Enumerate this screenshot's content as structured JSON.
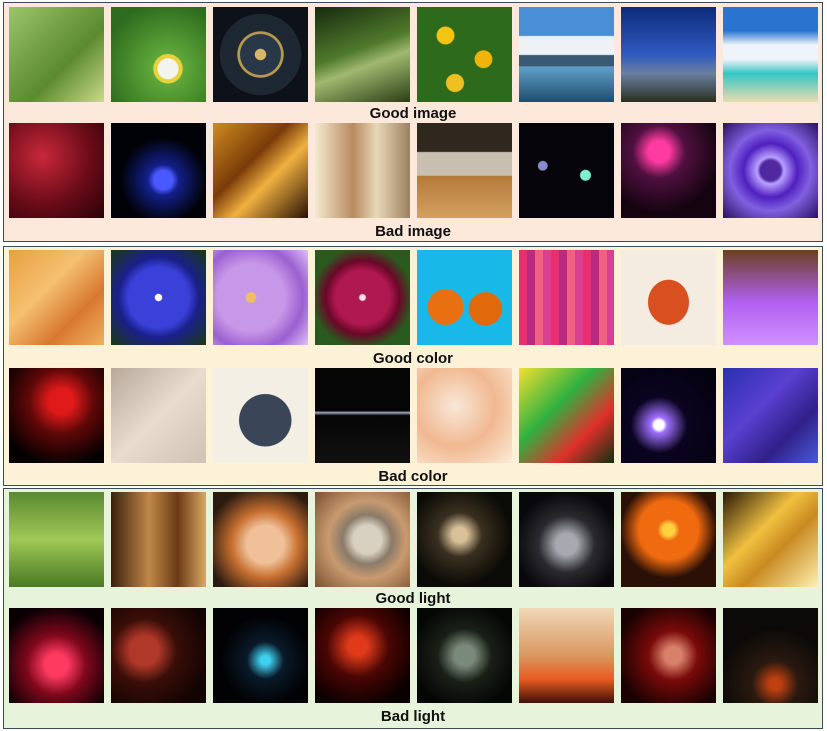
{
  "panels": {
    "image": {
      "good_label": "Good image",
      "bad_label": "Bad image",
      "good_thumbs": [
        {
          "icon": "dragonfly-photo",
          "bg": "linear-gradient(135deg,#9bc56a,#5c8a2e 60%,#c9d98b)"
        },
        {
          "icon": "butterfly-photo",
          "bg": "radial-gradient(circle at 60% 65%,#f3f3f0 0 12%,#e7d23a 13% 17%,#5fa83a 18%,#2d6b1e 80%)"
        },
        {
          "icon": "clock-photo",
          "bg": "radial-gradient(circle,#d7b56a 0 8%,#283848 9% 30%,#b89a4e 31% 34%,#1e2832 35% 60%,#0e1218 61%)"
        },
        {
          "icon": "park-bench-photo",
          "bg": "linear-gradient(160deg,#182a10,#4f7a2c 45%,#a0b870 60%,#2c3e14)"
        },
        {
          "icon": "yellow-flowers-photo",
          "bg": "radial-gradient(circle at 30% 30%,#f4c414 0 9%,transparent 10%),radial-gradient(circle at 70% 55%,#f2b40c 0 10%,transparent 11%),radial-gradient(circle at 40% 80%,#f0c020 0 9%,transparent 10%),#2e6a1c"
        },
        {
          "icon": "mountain-lake-photo",
          "bg": "linear-gradient(180deg,#4a8fd6 0 30%,#eef2f6 31% 50%,#3a5a74 51% 62%,#5fa0c8 63%,#1f4c6e)"
        },
        {
          "icon": "mountain-dusk-photo",
          "bg": "linear-gradient(180deg,#0d2a7a,#2f5ac0 50%,#6a7fa0 70%,#2a3020)"
        },
        {
          "icon": "beach-sky-photo",
          "bg": "linear-gradient(180deg,#2a74d0 0 25%,#eef4fa 40% 55%,#35c6c4 70%,#e8dcb0)"
        }
      ],
      "bad_thumbs": [
        {
          "icon": "dark-red-blur-photo",
          "bg": "radial-gradient(circle at 35% 35%,#c8283a,#6a0c18 55%,#2a0208)"
        },
        {
          "icon": "blue-lights-photo",
          "bg": "radial-gradient(circle at 55% 60%,#4a58ff 0 12%,#13208a 20%,#010208 55%)"
        },
        {
          "icon": "blurry-orange-photo",
          "bg": "linear-gradient(135deg,#d08a20,#7a3c08 40%,#f0b040 60%,#2a1204)"
        },
        {
          "icon": "blurry-people-photo",
          "bg": "linear-gradient(90deg,#f4ead0,#b88a60 40%,#e8d8b8 65%,#9a8060)"
        },
        {
          "icon": "kitchen-table-photo",
          "bg": "linear-gradient(180deg,#30281e 0 30%,#c8bfb0 31% 55%,#b47a3a 56%,#d4a060)"
        },
        {
          "icon": "dark-dots-photo",
          "bg": "radial-gradient(circle at 70% 55%,#7cf0d0 0 6%,transparent 7%),radial-gradient(circle at 25% 45%,#8a8ad0 0 5%,transparent 6%),#04040a"
        },
        {
          "icon": "singer-photo",
          "bg": "radial-gradient(circle at 40% 30%,#ff3aa0 0 12%,#501040 30%,#140410 70%)"
        },
        {
          "icon": "purple-swirl-photo",
          "bg": "radial-gradient(circle,#5028a0 0 15%,#b8a0ff 20%,#5020c0 40%,#8060e0 60%,#2a1060)"
        }
      ]
    },
    "color": {
      "good_label": "Good color",
      "bad_label": "Bad color",
      "good_thumbs": [
        {
          "icon": "autumn-leaves-photo",
          "bg": "linear-gradient(135deg,#e8a040,#f4c070 40%,#d87830 70%,#f0b060)"
        },
        {
          "icon": "blue-flower-photo",
          "bg": "radial-gradient(circle,#ffffff 0 5%,#3a40d8 6% 45%,#1a208a 60%,#1a3a10)"
        },
        {
          "icon": "lilac-flower-photo",
          "bg": "radial-gradient(circle at 40% 50%,#f0c060 0 6%,#c898e8 8% 45%,#9a60d0 70%,#e0c0f8)"
        },
        {
          "icon": "red-lily-photo",
          "bg": "radial-gradient(circle,#f0e0f0 0 4%,#b01850 6% 40%,#6a0828 55%,#2a5a1e 75%)"
        },
        {
          "icon": "pumpkins-photo",
          "bg": "radial-gradient(circle at 30% 60%,#e87010 0 20%,transparent 21%),radial-gradient(circle at 72% 62%,#e06a0a 0 18%,transparent 19%),#18b8e8"
        },
        {
          "icon": "colored-yarn-photo",
          "bg": "repeating-linear-gradient(90deg,#e83070 0 8px,#b82a80 8px 16px,#f06080 16px 24px,#d84090 24px 32px)"
        },
        {
          "icon": "red-leaf-photo",
          "bg": "radial-gradient(ellipse at 50% 55%,#d85020 0 30%,#f4ece0 31%)"
        },
        {
          "icon": "purple-tree-photo",
          "bg": "linear-gradient(180deg,#6a4020,#b060f0 55%,#d090ff)"
        }
      ],
      "bad_thumbs": [
        {
          "icon": "red-dark-photo",
          "bg": "radial-gradient(circle at 55% 35%,#e01a1a 0 15%,#600808 40%,#050000 80%)"
        },
        {
          "icon": "faded-room-photo",
          "bg": "linear-gradient(135deg,#b8a89a,#e8dccf 50%,#cfc2b4)"
        },
        {
          "icon": "yarn-ball-photo",
          "bg": "radial-gradient(circle at 55% 55%,#3a4658 0 35%,#f4efe4 36%)"
        },
        {
          "icon": "dark-stripe-photo",
          "bg": "linear-gradient(180deg,#050505 0 45%,#a0a8c0 47%,#050505 50%,#111)"
        },
        {
          "icon": "washed-texture-photo",
          "bg": "radial-gradient(circle at 40% 40%,#f8e8d8,#f0b890 50%,#fcebd8)"
        },
        {
          "icon": "neon-plants-photo",
          "bg": "linear-gradient(135deg,#f0e030,#30b040 40%,#e0302a 70%,#103010)"
        },
        {
          "icon": "light-dot-photo",
          "bg": "radial-gradient(circle at 40% 60%,#ffffff 0 6%,#a070ff 10%,#0a0420 35%,#02010a)"
        },
        {
          "icon": "blue-fabric-photo",
          "bg": "linear-gradient(135deg,#2a30b0,#5a40d0 40%,#30208a 70%,#4a5ad8)"
        }
      ]
    },
    "light": {
      "good_label": "Good light",
      "bad_label": "Bad light",
      "good_thumbs": [
        {
          "icon": "mushrooms-grass-photo",
          "bg": "linear-gradient(180deg,#5a8a30,#a0c858 50%,#4a7a22)"
        },
        {
          "icon": "wooden-room-photo",
          "bg": "linear-gradient(90deg,#3a200c,#c08848 40%,#6a3a14 70%,#d8a868)"
        },
        {
          "icon": "orange-cat-photo",
          "bg": "radial-gradient(circle at 55% 55%,#f0c098 0 25%,#c87030 45%,#2a1a10 80%)"
        },
        {
          "icon": "surprised-cat-photo",
          "bg": "radial-gradient(circle at 55% 50%,#d8d0c0 0 20%,#8a7a68 35%,#c89a70 55%,#7a5030)"
        },
        {
          "icon": "mushroom-night-photo",
          "bg": "radial-gradient(circle at 45% 45%,#d8c098 0 10%,#3a3020 30%,#0a0a06 70%)"
        },
        {
          "icon": "motorcycle-photo",
          "bg": "radial-gradient(circle at 50% 55%,#a8a8b0 0 15%,#2a2a30 40%,#08080a 75%)"
        },
        {
          "icon": "orange-lily-photo",
          "bg": "radial-gradient(circle at 50% 40%,#ffd040 0 8%,#f06a10 15% 40%,#2a1006 65%)"
        },
        {
          "icon": "gym-hall-photo",
          "bg": "linear-gradient(135deg,#2a1a08,#f0c040 40%,#c88a20 60%,#fff0b0)"
        }
      ],
      "bad_thumbs": [
        {
          "icon": "red-glass-photo",
          "bg": "radial-gradient(circle at 50% 60%,#ff3a60 0 15%,#80081c 40%,#0a0004 80%)"
        },
        {
          "icon": "pub-signs-photo",
          "bg": "radial-gradient(circle at 35% 45%,#b03828 0 18%,#3a0e08 40%,#120402 80%)"
        },
        {
          "icon": "dark-street-photo",
          "bg": "radial-gradient(circle at 55% 55%,#40d0f0 0 6%,#0a1a2a 25%,#020204 60%)"
        },
        {
          "icon": "red-stage-photo",
          "bg": "radial-gradient(circle at 45% 40%,#e03a1a 0 12%,#4a0604 40%,#0a0000 80%)"
        },
        {
          "icon": "dark-fish-photo",
          "bg": "radial-gradient(circle at 50% 50%,#7a8a7a 0 15%,#1a2018 40%,#040604 80%)"
        },
        {
          "icon": "silhouette-room-photo",
          "bg": "linear-gradient(180deg,#f0d8b8,#d89860 50%,#e85a20 75%,#401008)"
        },
        {
          "icon": "guitarist-photo",
          "bg": "radial-gradient(circle at 55% 50%,#d8806a 0 12%,#7a0a0a 35%,#1a0202 80%)"
        },
        {
          "icon": "fireplace-dark-photo",
          "bg": "radial-gradient(circle at 55% 80%,#c04010 0 6%,#2a1a10 25%,#0c0a08 60%)"
        }
      ]
    }
  }
}
